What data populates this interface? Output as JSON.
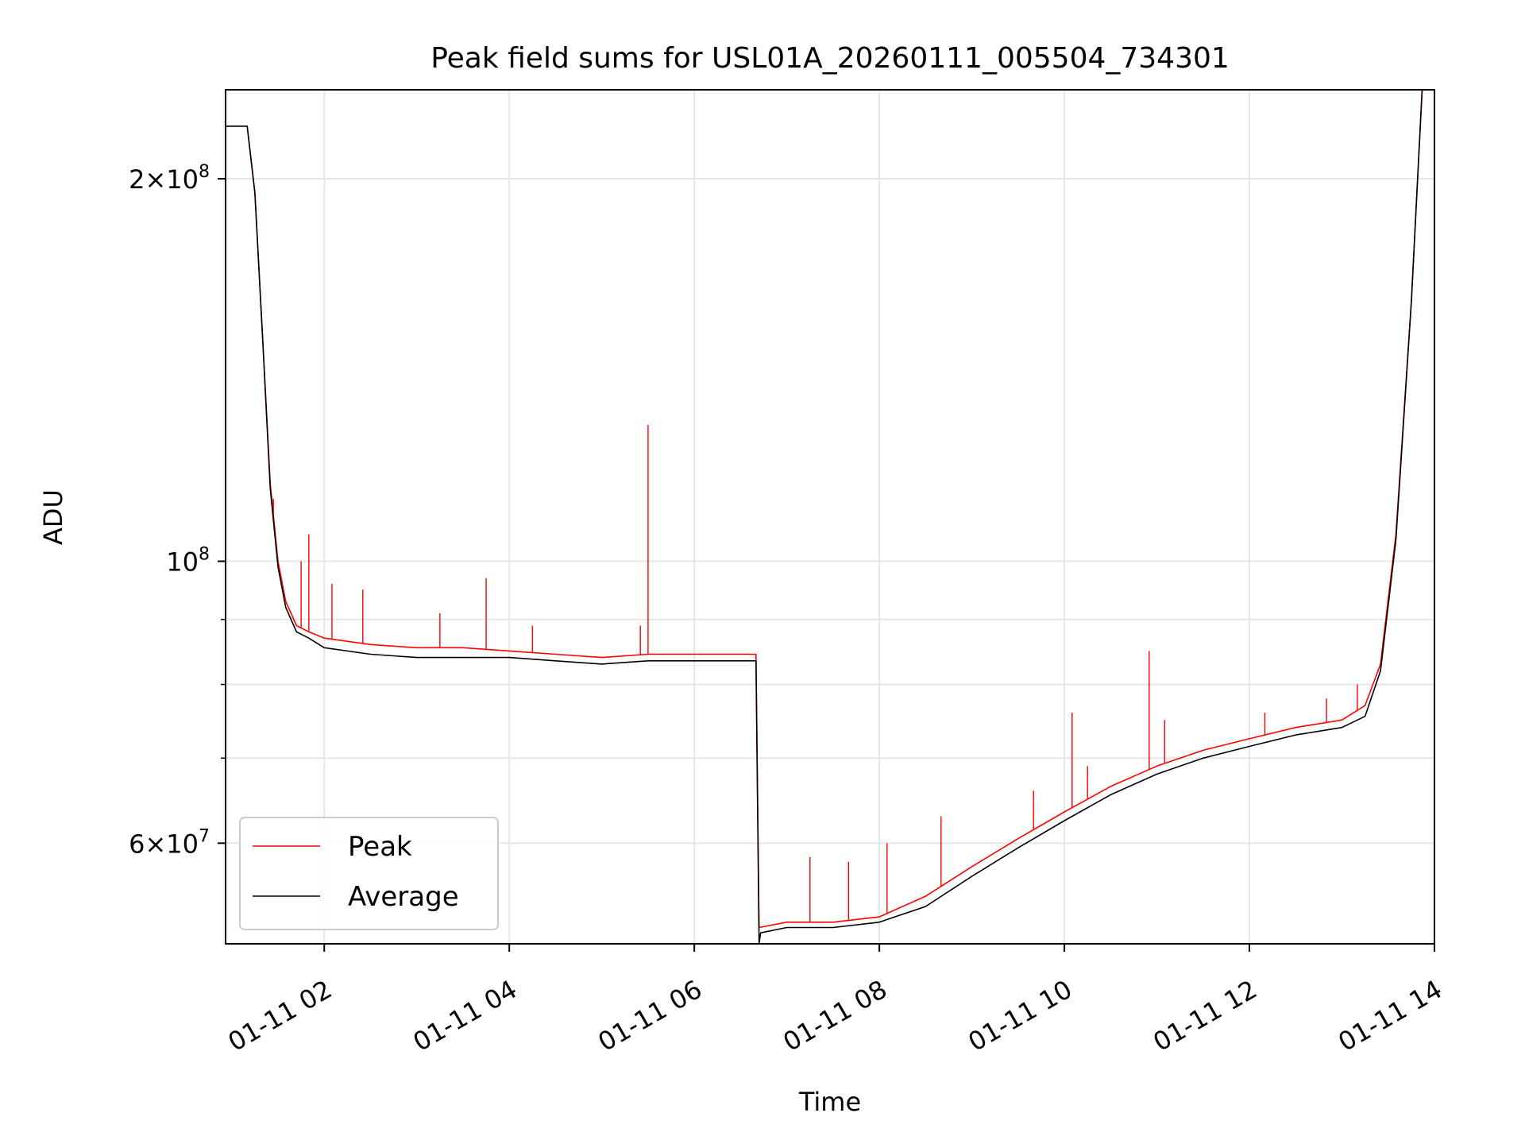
{
  "chart_data": {
    "type": "line",
    "title": "Peak field sums for USL01A_20260111_005504_734301",
    "xlabel": "Time",
    "ylabel": "ADU",
    "xscale": "time",
    "yscale": "log",
    "xlim": [
      "2026-01-11 00:56",
      "2026-01-11 14:00"
    ],
    "ylim": [
      50000000,
      235000000
    ],
    "grid": true,
    "legend": {
      "position": "lower-left",
      "entries": [
        "Peak",
        "Average"
      ]
    },
    "x_ticks": [
      {
        "value": "2026-01-11 02:00",
        "label": "01-11 02"
      },
      {
        "value": "2026-01-11 04:00",
        "label": "01-11 04"
      },
      {
        "value": "2026-01-11 06:00",
        "label": "01-11 06"
      },
      {
        "value": "2026-01-11 08:00",
        "label": "01-11 08"
      },
      {
        "value": "2026-01-11 10:00",
        "label": "01-11 10"
      },
      {
        "value": "2026-01-11 12:00",
        "label": "01-11 12"
      },
      {
        "value": "2026-01-11 14:00",
        "label": "01-11 14"
      }
    ],
    "y_ticks": [
      {
        "value": 60000000,
        "base": "6",
        "exp": "7"
      },
      {
        "value": 100000000,
        "base": "",
        "exp": "8"
      },
      {
        "value": 200000000,
        "base": "2",
        "exp": "8"
      }
    ],
    "y_minor_ticks": [
      70000000,
      80000000,
      90000000
    ],
    "series": [
      {
        "name": "Peak",
        "color": "#ff0000",
        "points": [
          [
            "2026-01-11 00:56",
            220000000.0
          ],
          [
            "2026-01-11 01:10",
            220000000.0
          ],
          [
            "2026-01-11 01:15",
            195000000.0
          ],
          [
            "2026-01-11 01:20",
            150000000.0
          ],
          [
            "2026-01-11 01:25",
            115000000.0
          ],
          [
            "2026-01-11 01:30",
            100000000.0
          ],
          [
            "2026-01-11 01:35",
            93000000.0
          ],
          [
            "2026-01-11 01:42",
            89000000.0
          ],
          [
            "2026-01-11 01:50",
            88000000.0
          ],
          [
            "2026-01-11 02:00",
            87000000.0
          ],
          [
            "2026-01-11 02:30",
            86000000.0
          ],
          [
            "2026-01-11 03:00",
            85500000.0
          ],
          [
            "2026-01-11 03:30",
            85500000.0
          ],
          [
            "2026-01-11 04:00",
            85000000.0
          ],
          [
            "2026-01-11 04:30",
            84500000.0
          ],
          [
            "2026-01-11 05:00",
            84000000.0
          ],
          [
            "2026-01-11 05:30",
            84500000.0
          ],
          [
            "2026-01-11 06:00",
            84500000.0
          ],
          [
            "2026-01-11 06:40",
            84500000.0
          ],
          [
            "2026-01-11 06:42",
            51500000.0
          ],
          [
            "2026-01-11 07:00",
            52000000.0
          ],
          [
            "2026-01-11 07:30",
            52000000.0
          ],
          [
            "2026-01-11 08:00",
            52500000.0
          ],
          [
            "2026-01-11 08:30",
            54500000.0
          ],
          [
            "2026-01-11 09:00",
            57500000.0
          ],
          [
            "2026-01-11 09:30",
            60500000.0
          ],
          [
            "2026-01-11 10:00",
            63500000.0
          ],
          [
            "2026-01-11 10:30",
            66500000.0
          ],
          [
            "2026-01-11 11:00",
            69000000.0
          ],
          [
            "2026-01-11 11:30",
            71000000.0
          ],
          [
            "2026-01-11 12:00",
            72500000.0
          ],
          [
            "2026-01-11 12:30",
            74000000.0
          ],
          [
            "2026-01-11 13:00",
            75000000.0
          ],
          [
            "2026-01-11 13:15",
            77000000.0
          ],
          [
            "2026-01-11 13:25",
            83000000.0
          ],
          [
            "2026-01-11 13:35",
            105000000.0
          ],
          [
            "2026-01-11 13:45",
            160000000.0
          ],
          [
            "2026-01-11 13:52",
            235000000.0
          ]
        ],
        "spikes": [
          [
            "2026-01-11 01:27",
            112000000.0
          ],
          [
            "2026-01-11 01:45",
            100000000.0
          ],
          [
            "2026-01-11 01:50",
            105000000.0
          ],
          [
            "2026-01-11 02:05",
            96000000.0
          ],
          [
            "2026-01-11 02:25",
            95000000.0
          ],
          [
            "2026-01-11 03:15",
            91000000.0
          ],
          [
            "2026-01-11 03:45",
            97000000.0
          ],
          [
            "2026-01-11 04:15",
            89000000.0
          ],
          [
            "2026-01-11 05:25",
            89000000.0
          ],
          [
            "2026-01-11 05:30",
            128000000.0
          ],
          [
            "2026-01-11 07:15",
            58500000.0
          ],
          [
            "2026-01-11 07:40",
            58000000.0
          ],
          [
            "2026-01-11 08:05",
            60000000.0
          ],
          [
            "2026-01-11 08:40",
            63000000.0
          ],
          [
            "2026-01-11 09:40",
            66000000.0
          ],
          [
            "2026-01-11 10:05",
            76000000.0
          ],
          [
            "2026-01-11 10:15",
            69000000.0
          ],
          [
            "2026-01-11 10:55",
            85000000.0
          ],
          [
            "2026-01-11 11:05",
            75000000.0
          ],
          [
            "2026-01-11 12:10",
            76000000.0
          ],
          [
            "2026-01-11 12:50",
            78000000.0
          ],
          [
            "2026-01-11 13:10",
            80000000.0
          ]
        ]
      },
      {
        "name": "Average",
        "color": "#000000",
        "points": [
          [
            "2026-01-11 00:56",
            220000000.0
          ],
          [
            "2026-01-11 01:10",
            220000000.0
          ],
          [
            "2026-01-11 01:15",
            195000000.0
          ],
          [
            "2026-01-11 01:20",
            150000000.0
          ],
          [
            "2026-01-11 01:25",
            114000000.0
          ],
          [
            "2026-01-11 01:30",
            99000000.0
          ],
          [
            "2026-01-11 01:35",
            92000000.0
          ],
          [
            "2026-01-11 01:42",
            88000000.0
          ],
          [
            "2026-01-11 01:50",
            87000000.0
          ],
          [
            "2026-01-11 02:00",
            85500000.0
          ],
          [
            "2026-01-11 02:30",
            84500000.0
          ],
          [
            "2026-01-11 03:00",
            84000000.0
          ],
          [
            "2026-01-11 03:30",
            84000000.0
          ],
          [
            "2026-01-11 04:00",
            84000000.0
          ],
          [
            "2026-01-11 04:30",
            83500000.0
          ],
          [
            "2026-01-11 05:00",
            83000000.0
          ],
          [
            "2026-01-11 05:30",
            83500000.0
          ],
          [
            "2026-01-11 06:00",
            83500000.0
          ],
          [
            "2026-01-11 06:40",
            83500000.0
          ],
          [
            "2026-01-11 06:42",
            50000000.0
          ],
          [
            "2026-01-11 06:43",
            51000000.0
          ],
          [
            "2026-01-11 07:00",
            51500000.0
          ],
          [
            "2026-01-11 07:30",
            51500000.0
          ],
          [
            "2026-01-11 08:00",
            52000000.0
          ],
          [
            "2026-01-11 08:30",
            53500000.0
          ],
          [
            "2026-01-11 09:00",
            56500000.0
          ],
          [
            "2026-01-11 09:30",
            59500000.0
          ],
          [
            "2026-01-11 10:00",
            62500000.0
          ],
          [
            "2026-01-11 10:30",
            65500000.0
          ],
          [
            "2026-01-11 11:00",
            68000000.0
          ],
          [
            "2026-01-11 11:30",
            70000000.0
          ],
          [
            "2026-01-11 12:00",
            71500000.0
          ],
          [
            "2026-01-11 12:30",
            73000000.0
          ],
          [
            "2026-01-11 13:00",
            74000000.0
          ],
          [
            "2026-01-11 13:15",
            75500000.0
          ],
          [
            "2026-01-11 13:25",
            82000000.0
          ],
          [
            "2026-01-11 13:35",
            104000000.0
          ],
          [
            "2026-01-11 13:45",
            160000000.0
          ],
          [
            "2026-01-11 13:52",
            235000000.0
          ]
        ]
      }
    ]
  }
}
